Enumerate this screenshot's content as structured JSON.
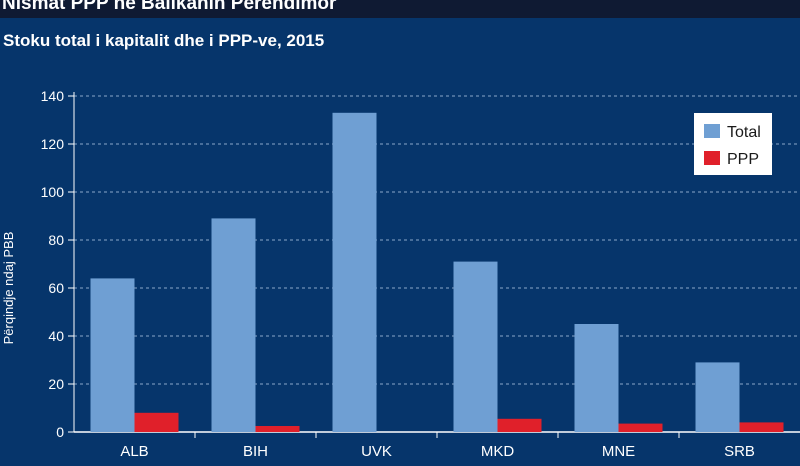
{
  "header": {
    "title": "Nismat PPP në Ballkanin Perëndimor",
    "subtitle": "Stoku total i kapitalit dhe i PPP-ve, 2015"
  },
  "chart_data": {
    "type": "bar",
    "categories": [
      "ALB",
      "BIH",
      "UVK",
      "MKD",
      "MNE",
      "SRB"
    ],
    "series": [
      {
        "name": "Total",
        "values": [
          64,
          89,
          133,
          71,
          45,
          29
        ],
        "color": "#6f9fd3"
      },
      {
        "name": "PPP",
        "values": [
          8,
          2.5,
          0,
          5.5,
          3.5,
          4
        ],
        "color": "#e0202a"
      }
    ],
    "ylabel": "Përqindje ndaj PBB",
    "ylim": [
      0,
      140
    ],
    "yticks": [
      0,
      20,
      40,
      60,
      80,
      100,
      120,
      140
    ],
    "grid": true,
    "legend_position": "top-right",
    "colors": {
      "background": "#06356b",
      "grid": "#8aa6c8",
      "axis": "#ffffff",
      "legend_bg": "#ffffff"
    }
  }
}
